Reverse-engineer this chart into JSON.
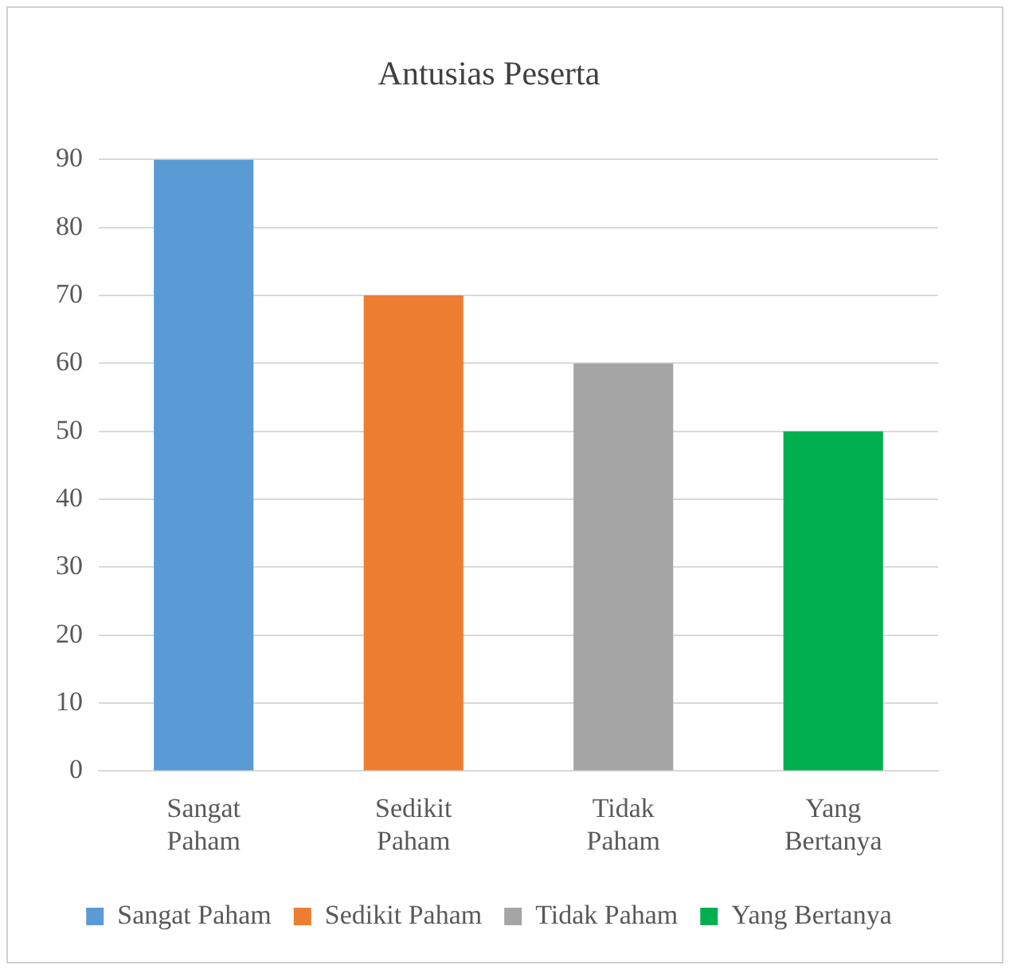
{
  "chart_data": {
    "type": "bar",
    "title": "Antusias Peserta",
    "categories": [
      "Sangat Paham",
      "Sedikit Paham",
      "Tidak Paham",
      "Yang Bertanya"
    ],
    "series": [
      {
        "name": "Sangat Paham",
        "color": "#5b9bd5",
        "values": [
          90,
          null,
          null,
          null
        ]
      },
      {
        "name": "Sedikit Paham",
        "color": "#ed7d31",
        "values": [
          null,
          70,
          null,
          null
        ]
      },
      {
        "name": "Tidak Paham",
        "color": "#a5a5a5",
        "values": [
          null,
          null,
          60,
          null
        ]
      },
      {
        "name": "Yang Bertanya",
        "color": "#00b050",
        "values": [
          null,
          null,
          null,
          50
        ]
      }
    ],
    "ylim": [
      0,
      90
    ],
    "yticks": [
      0,
      10,
      20,
      30,
      40,
      50,
      60,
      70,
      80,
      90
    ],
    "grid": "y",
    "legend": "bottom"
  }
}
